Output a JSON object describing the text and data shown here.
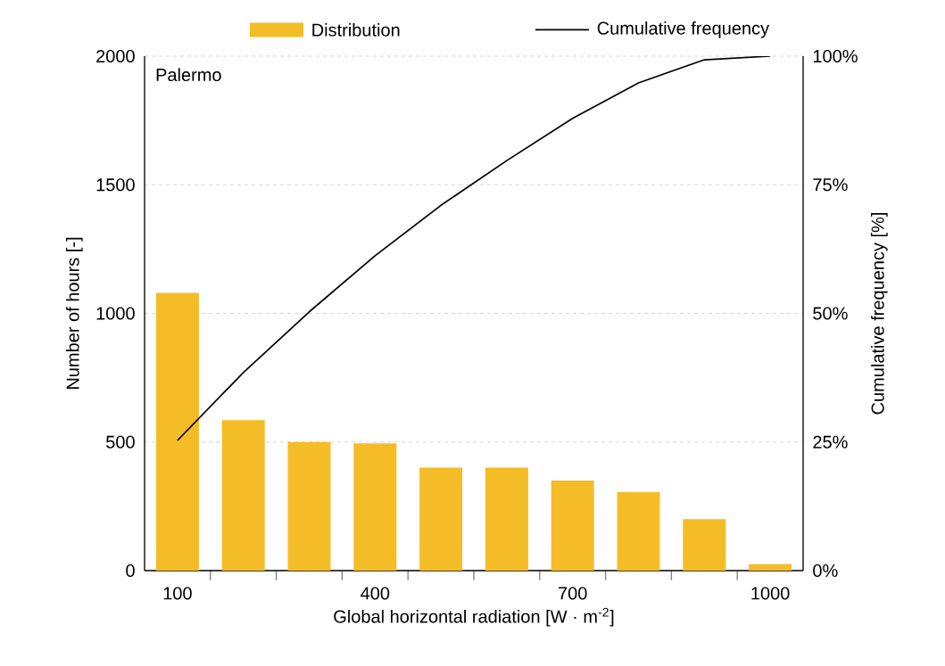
{
  "chart_data": {
    "type": "bar",
    "categories": [
      "100",
      null,
      null,
      "400",
      null,
      null,
      "700",
      null,
      null,
      "1000"
    ],
    "series": [
      {
        "name": "Distribution",
        "color": "#f4bc26",
        "values": [
          1080,
          585,
          500,
          495,
          400,
          400,
          350,
          305,
          200,
          25
        ]
      },
      {
        "name": "Cumulative frequency",
        "type": "line",
        "axis": "y2",
        "color": "#000000",
        "values": [
          25.3,
          38.5,
          50.3,
          61.2,
          71,
          79.7,
          87.9,
          94.8,
          99.3,
          100
        ]
      }
    ],
    "xlabel": "Global horizontal radiation [W · m$^{-2}$]",
    "ylabel": "Number of hours [-]",
    "y2label": "Cumulative frequency [%]",
    "ylim": [
      0,
      2000
    ],
    "yticks": [
      0,
      500,
      1000,
      1500,
      2000
    ],
    "y2lim": [
      0,
      100
    ],
    "y2ticks": [
      {
        "value": 0,
        "label": "0%"
      },
      {
        "value": 25,
        "label": "25%"
      },
      {
        "value": 50,
        "label": "50%"
      },
      {
        "value": 75,
        "label": "75%"
      },
      {
        "value": 100,
        "label": "100%"
      }
    ],
    "grid": "y",
    "legend": "top",
    "annotations": [
      "Palermo"
    ]
  }
}
